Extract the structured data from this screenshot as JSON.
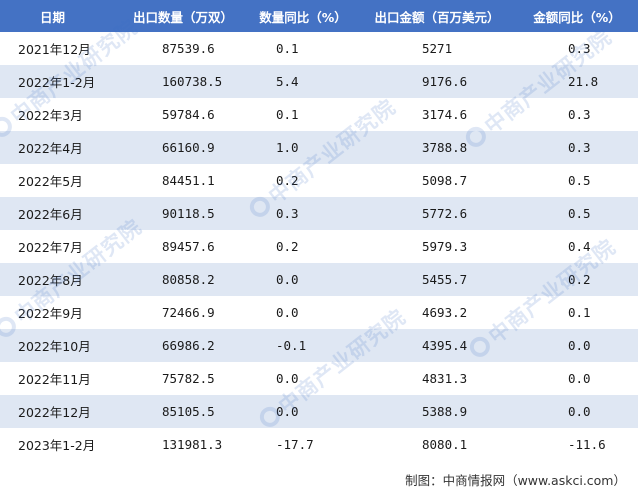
{
  "table": {
    "headers": [
      "日期",
      "出口数量（万双）",
      "数量同比（%）",
      "出口金额（百万美元）",
      "金额同比（%）"
    ],
    "rows": [
      [
        "2021年12月",
        "87539.6",
        "0.1",
        "5271",
        "0.3"
      ],
      [
        "2022年1-2月",
        "160738.5",
        "5.4",
        "9176.6",
        "21.8"
      ],
      [
        "2022年3月",
        "59784.6",
        "0.1",
        "3174.6",
        "0.3"
      ],
      [
        "2022年4月",
        "66160.9",
        "1.0",
        "3788.8",
        "0.3"
      ],
      [
        "2022年5月",
        "84451.1",
        "0.2",
        "5098.7",
        "0.5"
      ],
      [
        "2022年6月",
        "90118.5",
        "0.3",
        "5772.6",
        "0.5"
      ],
      [
        "2022年7月",
        "89457.6",
        "0.2",
        "5979.3",
        "0.4"
      ],
      [
        "2022年8月",
        "80858.2",
        "0.0",
        "5455.7",
        "0.2"
      ],
      [
        "2022年9月",
        "72466.9",
        "0.0",
        "4693.2",
        "0.1"
      ],
      [
        "2022年10月",
        "66986.2",
        "-0.1",
        "4395.4",
        "0.0"
      ],
      [
        "2022年11月",
        "75782.5",
        "0.0",
        "4831.3",
        "0.0"
      ],
      [
        "2022年12月",
        "85105.5",
        "0.0",
        "5388.9",
        "0.0"
      ],
      [
        "2023年1-2月",
        "131981.3",
        "-17.7",
        "8080.1",
        "-11.6"
      ]
    ]
  },
  "source": "制图：中商情报网（www.askci.com）",
  "watermark": {
    "text": "中商产业研究院",
    "logo_icon": "askci-logo-icon",
    "color": "#3d6fc4"
  },
  "colors": {
    "header_bg": "#4472c4",
    "stripe_bg": "#dfe7f3"
  }
}
